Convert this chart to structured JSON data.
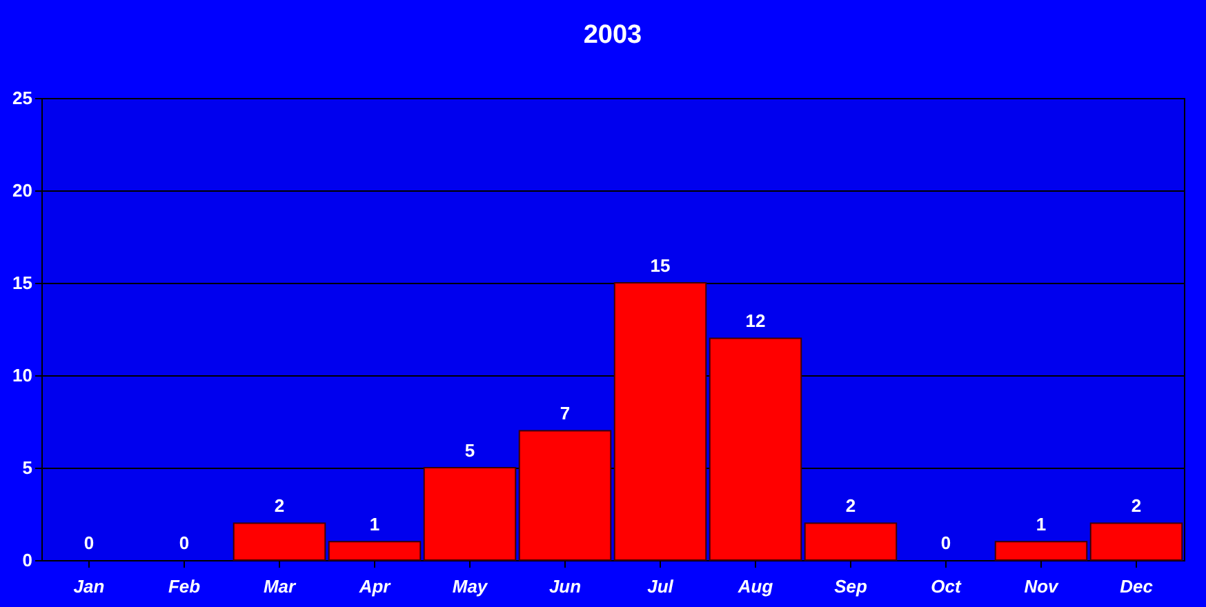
{
  "chart_data": {
    "type": "bar",
    "title": "2003",
    "categories": [
      "Jan",
      "Feb",
      "Mar",
      "Apr",
      "May",
      "Jun",
      "Jul",
      "Aug",
      "Sep",
      "Oct",
      "Nov",
      "Dec"
    ],
    "values": [
      0,
      0,
      2,
      1,
      5,
      7,
      15,
      12,
      2,
      0,
      1,
      2
    ],
    "color": "#ff0000",
    "ylim": [
      0,
      25
    ],
    "yticks": [
      0,
      5,
      10,
      15,
      20,
      25
    ],
    "grid": "y",
    "data_labels": true
  }
}
